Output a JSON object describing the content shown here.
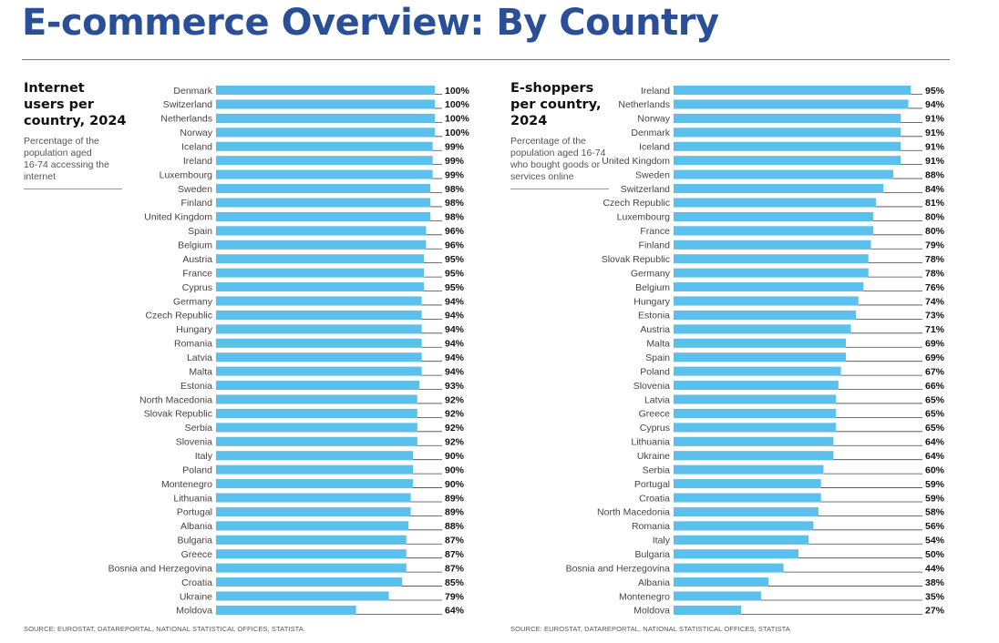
{
  "page": {
    "title": "E-commerce Overview: By Country",
    "bar_color": "#5bc0eb",
    "title_color": "#2a4f96"
  },
  "chart_data": [
    {
      "type": "bar",
      "orientation": "horizontal",
      "title": "Internet\nusers per\ncountry, 2024",
      "subtitle": "Percentage of the\npopulation aged\n16-74 accessing the\ninternet",
      "source": "SOURCE: EUROSTAT, DATAREPORTAL, NATIONAL STATISTICAL OFFICES, STATISTA",
      "unit": "%",
      "xlim": [
        0,
        100
      ],
      "grid": false,
      "categories": [
        "Denmark",
        "Switzerland",
        "Netherlands",
        "Norway",
        "Iceland",
        "Ireland",
        "Luxembourg",
        "Sweden",
        "Finland",
        "United Kingdom",
        "Spain",
        "Belgium",
        "Austria",
        "France",
        "Cyprus",
        "Germany",
        "Czech Republic",
        "Hungary",
        "Romania",
        "Latvia",
        "Malta",
        "Estonia",
        "North Macedonia",
        "Slovak Republic",
        "Serbia",
        "Slovenia",
        "Italy",
        "Poland",
        "Montenegro",
        "Lithuania",
        "Portugal",
        "Albania",
        "Bulgaria",
        "Greece",
        "Bosnia and Herzegovina",
        "Croatia",
        "Ukraine",
        "Moldova"
      ],
      "values": [
        100,
        100,
        100,
        100,
        99,
        99,
        99,
        98,
        98,
        98,
        96,
        96,
        95,
        95,
        95,
        94,
        94,
        94,
        94,
        94,
        94,
        93,
        92,
        92,
        92,
        92,
        90,
        90,
        90,
        89,
        89,
        88,
        87,
        87,
        87,
        85,
        79,
        64
      ]
    },
    {
      "type": "bar",
      "orientation": "horizontal",
      "title": "E-shoppers\nper country,\n2024",
      "subtitle": "Percentage of the\npopulation aged 16-74\nwho bought goods or\nservices online",
      "source": "SOURCE: EUROSTAT, DATAREPORTAL, NATIONAL STATISTICAL OFFICES, STATISTA",
      "unit": "%",
      "xlim": [
        0,
        100
      ],
      "grid": false,
      "categories": [
        "Ireland",
        "Netherlands",
        "Norway",
        "Denmark",
        "Iceland",
        "United Kingdom",
        "Sweden",
        "Switzerland",
        "Czech Republic",
        "Luxembourg",
        "France",
        "Finland",
        "Slovak Republic",
        "Germany",
        "Belgium",
        "Hungary",
        "Estonia",
        "Austria",
        "Malta",
        "Spain",
        "Poland",
        "Slovenia",
        "Latvia",
        "Greece",
        "Cyprus",
        "Lithuania",
        "Ukraine",
        "Serbia",
        "Portugal",
        "Croatia",
        "North Macedonia",
        "Romania",
        "Italy",
        "Bulgaria",
        "Bosnia and Herzegovina",
        "Albania",
        "Montenegro",
        "Moldova"
      ],
      "values": [
        95,
        94,
        91,
        91,
        91,
        91,
        88,
        84,
        81,
        80,
        80,
        79,
        78,
        78,
        76,
        74,
        73,
        71,
        69,
        69,
        67,
        66,
        65,
        65,
        65,
        64,
        64,
        60,
        59,
        59,
        58,
        56,
        54,
        50,
        44,
        38,
        35,
        27
      ]
    }
  ]
}
